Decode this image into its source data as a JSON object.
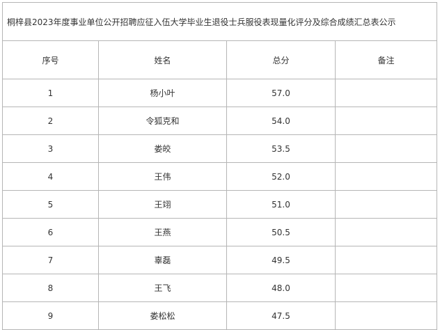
{
  "table": {
    "title": "桐梓县2023年度事业单位公开招聘应征入伍大学毕业生退役士兵服役表现量化评分及综合成绩汇总表公示",
    "headers": [
      "序号",
      "姓名",
      "总分",
      "备注"
    ],
    "rows": [
      [
        "1",
        "杨小叶",
        "57.0"
      ],
      [
        "2",
        "令狐克和",
        "54.0"
      ],
      [
        "3",
        "娄皎",
        "53.5"
      ],
      [
        "4",
        "王伟",
        "52.0"
      ],
      [
        "5",
        "王翊",
        "51.0"
      ],
      [
        "6",
        "王燕",
        "50.5"
      ],
      [
        "7",
        "辜磊",
        "49.5"
      ],
      [
        "8",
        "王飞",
        "48.0"
      ],
      [
        "9",
        "娄松松",
        "47.5"
      ]
    ]
  }
}
